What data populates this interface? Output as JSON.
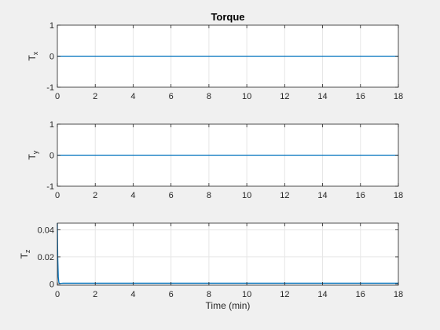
{
  "chart_data": [
    {
      "type": "line",
      "title": "Torque",
      "ylabel": "T",
      "ylabel_sub": "x",
      "xlabel": "",
      "xlim": [
        0,
        18
      ],
      "ylim": [
        -1,
        1
      ],
      "xticks": [
        0,
        2,
        4,
        6,
        8,
        10,
        12,
        14,
        16,
        18
      ],
      "yticks": [
        -1,
        0,
        1
      ],
      "ytick_labels": [
        "-1",
        "0",
        "1"
      ],
      "grid": true,
      "series": [
        {
          "color": "#0072bd",
          "x": [
            0,
            18
          ],
          "y": [
            0,
            0
          ]
        }
      ]
    },
    {
      "type": "line",
      "title": "",
      "ylabel": "T",
      "ylabel_sub": "y",
      "xlabel": "",
      "xlim": [
        0,
        18
      ],
      "ylim": [
        -1,
        1
      ],
      "xticks": [
        0,
        2,
        4,
        6,
        8,
        10,
        12,
        14,
        16,
        18
      ],
      "yticks": [
        -1,
        0,
        1
      ],
      "ytick_labels": [
        "-1",
        "0",
        "1"
      ],
      "grid": true,
      "series": [
        {
          "color": "#0072bd",
          "x": [
            0,
            18
          ],
          "y": [
            0,
            0
          ]
        }
      ]
    },
    {
      "type": "line",
      "title": "",
      "ylabel": "T",
      "ylabel_sub": "z",
      "xlabel": "Time (min)",
      "xlim": [
        0,
        18
      ],
      "ylim": [
        -0.001,
        0.045
      ],
      "xticks": [
        0,
        2,
        4,
        6,
        8,
        10,
        12,
        14,
        16,
        18
      ],
      "yticks": [
        0,
        0.02,
        0.04
      ],
      "ytick_labels": [
        "0",
        "0.02",
        "0.04"
      ],
      "grid": true,
      "series": [
        {
          "color": "#0072bd",
          "x": [
            0,
            0.02,
            0.05,
            0.08,
            0.12,
            0.2,
            0.3,
            0.5,
            1,
            18
          ],
          "y": [
            0.045,
            0.02,
            0.005,
            0.001,
            0.0002,
            0.0004,
            0.0005,
            0.0005,
            0.0005,
            0.0005
          ]
        }
      ]
    }
  ]
}
